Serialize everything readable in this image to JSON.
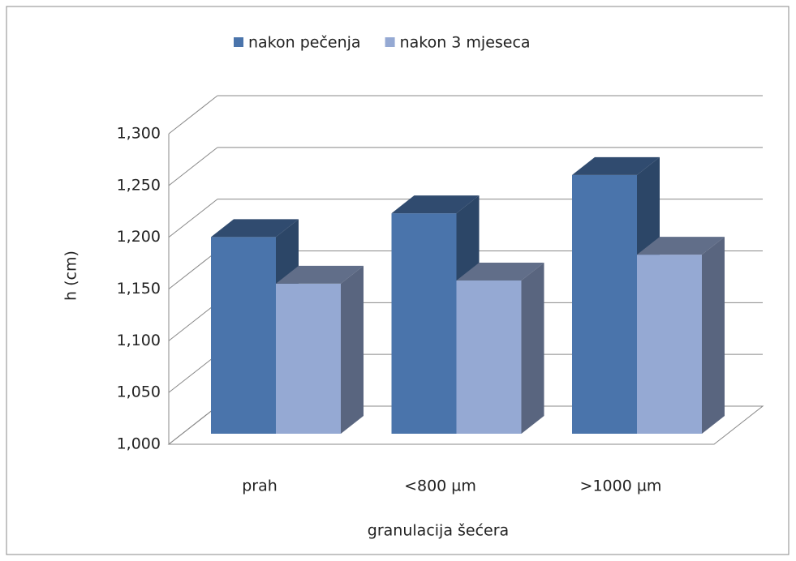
{
  "chart_data": {
    "type": "bar3d",
    "categories": [
      "prah",
      "<800 µm",
      ">1000 µm"
    ],
    "series": [
      {
        "name": "nakon pečenja",
        "color": "#4a74ab",
        "values": [
          1.19,
          1.213,
          1.25
        ]
      },
      {
        "name": "nakon 3 mjeseca",
        "color": "#95a9d3",
        "values": [
          1.145,
          1.148,
          1.173
        ]
      }
    ],
    "ylim": [
      1.0,
      1.3
    ],
    "yticks": [
      {
        "value": 1.0,
        "label": "1,000"
      },
      {
        "value": 1.05,
        "label": "1,050"
      },
      {
        "value": 1.1,
        "label": "1,100"
      },
      {
        "value": 1.15,
        "label": "1,150"
      },
      {
        "value": 1.2,
        "label": "1,200"
      },
      {
        "value": 1.25,
        "label": "1,250"
      },
      {
        "value": 1.3,
        "label": "1,300"
      }
    ],
    "y_label": "h (cm)",
    "x_label": "granulacija šećera",
    "grid": true,
    "legend": "top"
  }
}
